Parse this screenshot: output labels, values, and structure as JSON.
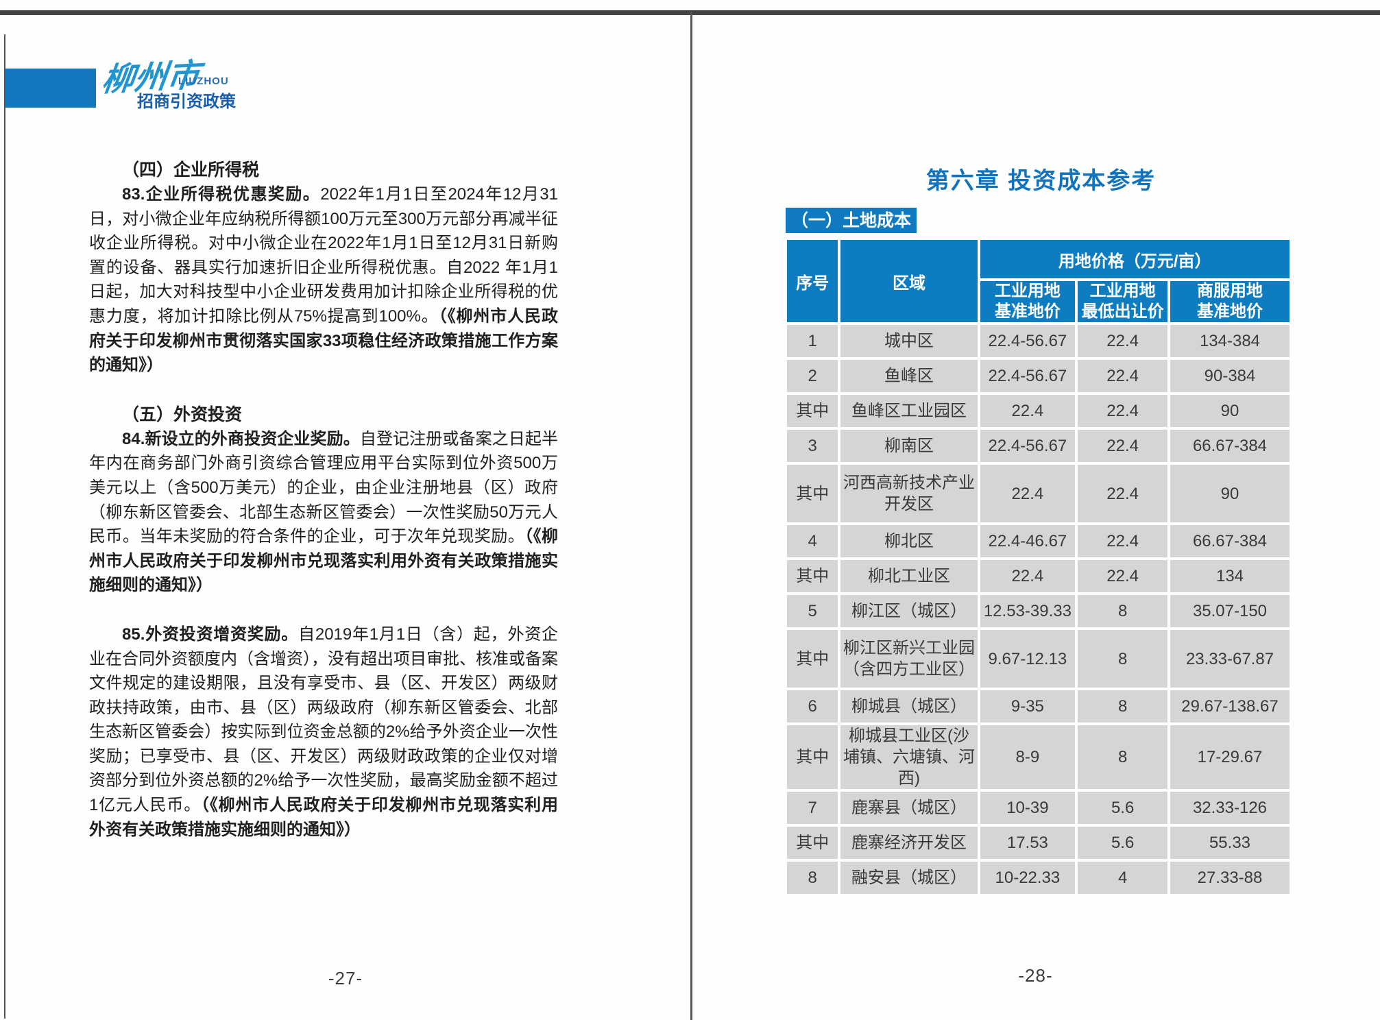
{
  "logo": {
    "city_script": "柳州市",
    "city_latin": "LIUZHOU",
    "subtitle": "招商引资政策"
  },
  "colors": {
    "brand_blue": "#0e7cc1",
    "title_blue": "#1173bd",
    "badge_blue": "#0f7abf",
    "logo_blue": "#1377bd",
    "row_gray": "#d5d5d5"
  },
  "left_page": {
    "section4_heading": "（四）企业所得税",
    "para83": {
      "lead": "83.企业所得税优惠奖励。",
      "body": "2022年1月1日至2024年12月31日，对小微企业年应纳税所得额100万元至300万元部分再减半征收企业所得税。对中小微企业在2022年1月1日至12月31日新购置的设备、器具实行加速折旧企业所得税优惠。自2022 年1月1日起，加大对科技型中小企业研发费用加计扣除企业所得税的优惠力度，将加计扣除比例从75%提高到100%。",
      "citation": "（《柳州市人民政府关于印发柳州市贯彻落实国家33项稳住经济政策措施工作方案的通知》）"
    },
    "section5_heading": "（五）外资投资",
    "para84": {
      "lead": "84.新设立的外商投资企业奖励。",
      "body": "自登记注册或备案之日起半年内在商务部门外商引资综合管理应用平台实际到位外资500万美元以上（含500万美元）的企业，由企业注册地县（区）政府（柳东新区管委会、北部生态新区管委会）一次性奖励50万元人民币。当年未奖励的符合条件的企业，可于次年兑现奖励。",
      "citation": "（《柳州市人民政府关于印发柳州市兑现落实利用外资有关政策措施实施细则的通知》）"
    },
    "para85": {
      "lead": "85.外资投资增资奖励。",
      "body": "自2019年1月1日（含）起，外资企业在合同外资额度内（含增资），没有超出项目审批、核准或备案文件规定的建设期限，且没有享受市、县（区、开发区）两级财政扶持政策，由市、县（区）两级政府（柳东新区管委会、北部生态新区管委会）按实际到位资金总额的2%给予外资企业一次性奖励；已享受市、县（区、开发区）两级财政政策的企业仅对增资部分到位外资总额的2%给予一次性奖励，最高奖励金额不超过1亿元人民币。",
      "citation": "（《柳州市人民政府关于印发柳州市兑现落实利用外资有关政策措施实施细则的通知》）"
    },
    "page_number": "-27-"
  },
  "right_page": {
    "chapter_title": "第六章 投资成本参考",
    "section_badge": "（一）土地成本",
    "table": {
      "col_seq": "序号",
      "col_region": "区域",
      "col_price_group": "用地价格（万元/亩）",
      "subheaders": [
        {
          "l1": "工业用地",
          "l2": "基准地价"
        },
        {
          "l1": "工业用地",
          "l2": "最低出让价"
        },
        {
          "l1": "商服用地",
          "l2": "基准地价"
        }
      ],
      "rows": [
        {
          "seq": "1",
          "region": "城中区",
          "industrial_base": "22.4-56.67",
          "industrial_min": "22.4",
          "commercial_base": "134-384"
        },
        {
          "seq": "2",
          "region": "鱼峰区",
          "industrial_base": "22.4-56.67",
          "industrial_min": "22.4",
          "commercial_base": "90-384"
        },
        {
          "seq": "其中",
          "region": "鱼峰区工业园区",
          "industrial_base": "22.4",
          "industrial_min": "22.4",
          "commercial_base": "90"
        },
        {
          "seq": "3",
          "region": "柳南区",
          "industrial_base": "22.4-56.67",
          "industrial_min": "22.4",
          "commercial_base": "66.67-384"
        },
        {
          "seq": "其中",
          "region": "河西高新技术产业开发区",
          "industrial_base": "22.4",
          "industrial_min": "22.4",
          "commercial_base": "90"
        },
        {
          "seq": "4",
          "region": "柳北区",
          "industrial_base": "22.4-46.67",
          "industrial_min": "22.4",
          "commercial_base": "66.67-384"
        },
        {
          "seq": "其中",
          "region": "柳北工业区",
          "industrial_base": "22.4",
          "industrial_min": "22.4",
          "commercial_base": "134"
        },
        {
          "seq": "5",
          "region": "柳江区（城区）",
          "industrial_base": "12.53-39.33",
          "industrial_min": "8",
          "commercial_base": "35.07-150"
        },
        {
          "seq": "其中",
          "region": "柳江区新兴工业园（含四方工业区）",
          "industrial_base": "9.67-12.13",
          "industrial_min": "8",
          "commercial_base": "23.33-67.87"
        },
        {
          "seq": "6",
          "region": "柳城县（城区）",
          "industrial_base": "9-35",
          "industrial_min": "8",
          "commercial_base": "29.67-138.67"
        },
        {
          "seq": "其中",
          "region": "柳城县工业区(沙埔镇、六塘镇、河西)",
          "industrial_base": "8-9",
          "industrial_min": "8",
          "commercial_base": "17-29.67"
        },
        {
          "seq": "7",
          "region": "鹿寨县（城区）",
          "industrial_base": "10-39",
          "industrial_min": "5.6",
          "commercial_base": "32.33-126"
        },
        {
          "seq": "其中",
          "region": "鹿寨经济开发区",
          "industrial_base": "17.53",
          "industrial_min": "5.6",
          "commercial_base": "55.33"
        },
        {
          "seq": "8",
          "region": "融安县（城区）",
          "industrial_base": "10-22.33",
          "industrial_min": "4",
          "commercial_base": "27.33-88"
        }
      ]
    },
    "page_number": "-28-"
  }
}
